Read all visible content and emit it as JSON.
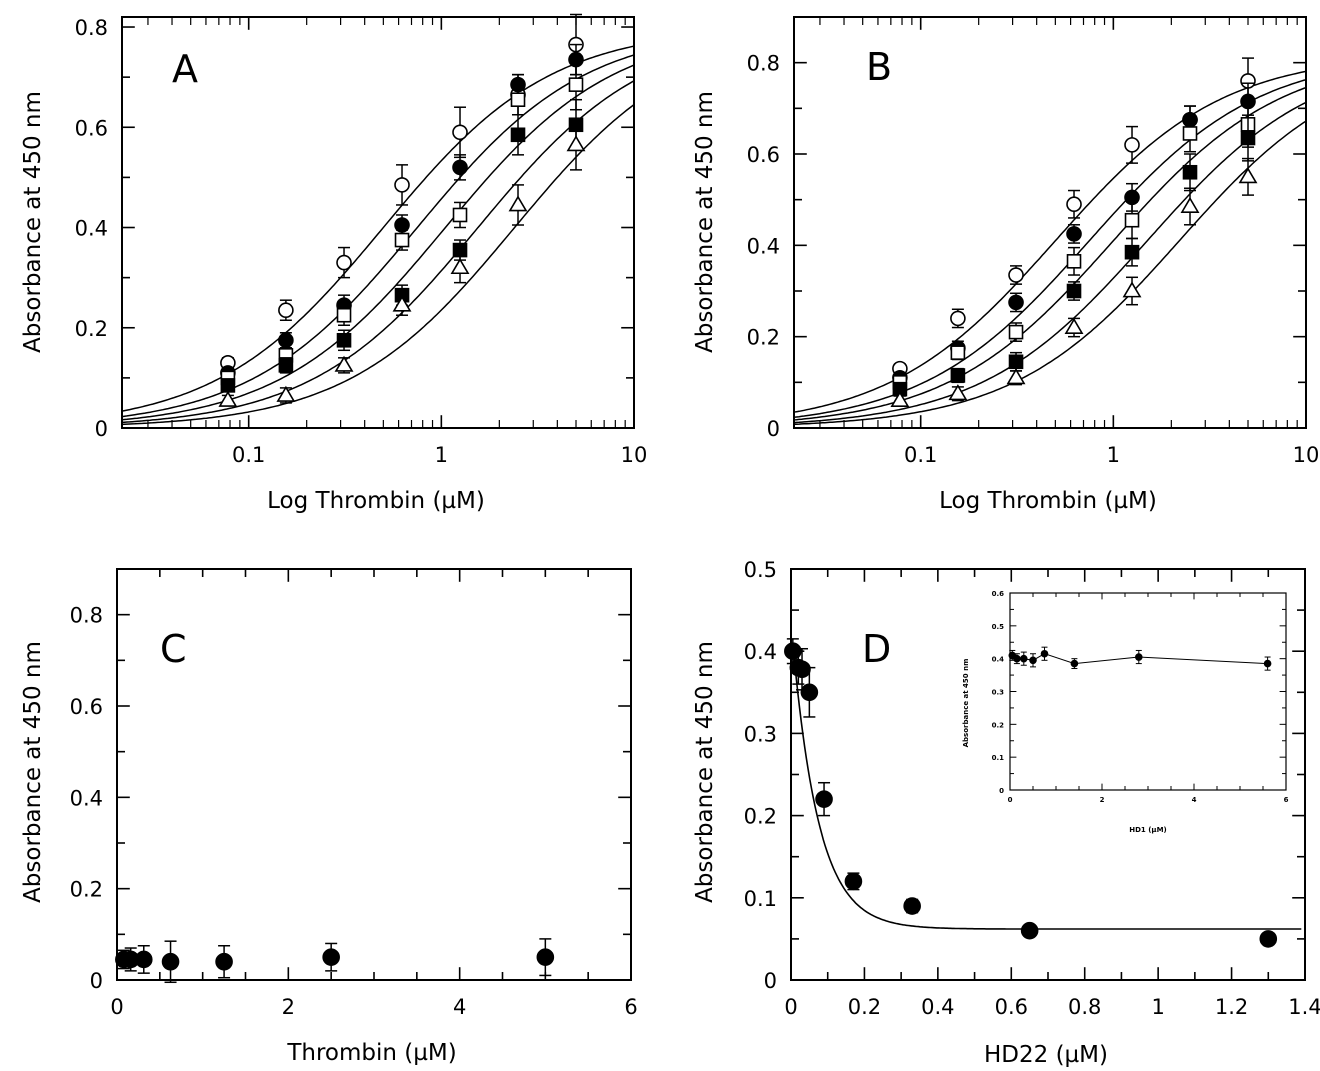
{
  "figure": {
    "panels": [
      {
        "id": "A",
        "letter": "A",
        "xlabel": "Log Thrombin (µM)",
        "ylabel": "Absorbance at 450 nm",
        "xticks": [
          "0.1",
          "1",
          "10"
        ],
        "yticks": [
          "0",
          "0.2",
          "0.4",
          "0.6",
          "0.8"
        ]
      },
      {
        "id": "B",
        "letter": "B",
        "xlabel": "Log Thrombin (µM)",
        "ylabel": "Absorbance at 450 nm",
        "xticks": [
          "0.1",
          "1",
          "10"
        ],
        "yticks": [
          "0",
          "0.2",
          "0.4",
          "0.6",
          "0.8"
        ]
      },
      {
        "id": "C",
        "letter": "C",
        "xlabel": "Thrombin (µM)",
        "ylabel": "Absorbance at 450 nm",
        "xticks": [
          "0",
          "2",
          "4",
          "6"
        ],
        "yticks": [
          "0",
          "0.2",
          "0.4",
          "0.6",
          "0.8"
        ]
      },
      {
        "id": "D",
        "letter": "D",
        "xlabel": "HD22 (µM)",
        "ylabel": "Absorbance at 450 nm",
        "xticks": [
          "0",
          "0.2",
          "0.4",
          "0.6",
          "0.8",
          "1",
          "1.2",
          "1.4"
        ],
        "yticks": [
          "0",
          "0.1",
          "0.2",
          "0.3",
          "0.4",
          "0.5"
        ]
      },
      {
        "id": "D-inset",
        "letter": "",
        "xlabel": "HD1 (µM)",
        "ylabel": "Absorbance at 450 nm",
        "xticks": [
          "0",
          "2",
          "4",
          "6"
        ],
        "yticks": [
          "0",
          "0.1",
          "0.2",
          "0.3",
          "0.4",
          "0.5",
          "0.6"
        ]
      }
    ]
  },
  "chart_data": [
    {
      "panel": "A",
      "type": "scatter",
      "xscale": "log",
      "xlim": [
        0.022,
        10
      ],
      "ylim": [
        0,
        0.82
      ],
      "grid": false,
      "xlabel": "Log Thrombin (µM)",
      "ylabel": "Absorbance at 450 nm",
      "x": [
        0.078,
        0.156,
        0.3125,
        0.625,
        1.25,
        2.5,
        5
      ],
      "fit": {
        "model": "sigmoid",
        "top": 0.8,
        "hill": 1.0
      },
      "series": [
        {
          "marker": "open-circle",
          "values": [
            0.13,
            0.235,
            0.33,
            0.485,
            0.59,
            0.665,
            0.765
          ],
          "errors": [
            0.01,
            0.02,
            0.03,
            0.04,
            0.05,
            0.04,
            0.06
          ],
          "ec50": 0.5
        },
        {
          "marker": "filled-circle",
          "values": [
            0.11,
            0.175,
            0.245,
            0.405,
            0.52,
            0.685,
            0.735
          ],
          "errors": [
            0.01,
            0.015,
            0.02,
            0.02,
            0.025,
            0.02,
            0.03
          ],
          "ec50": 0.75
        },
        {
          "marker": "open-square",
          "values": [
            0.1,
            0.145,
            0.225,
            0.375,
            0.425,
            0.655,
            0.685
          ],
          "errors": [
            0.01,
            0.015,
            0.02,
            0.02,
            0.025,
            0.03,
            0.05
          ],
          "ec50": 1.05
        },
        {
          "marker": "filled-square",
          "values": [
            0.085,
            0.125,
            0.175,
            0.265,
            0.355,
            0.585,
            0.605
          ],
          "errors": [
            0.01,
            0.015,
            0.02,
            0.02,
            0.02,
            0.04,
            0.05
          ],
          "ec50": 1.55
        },
        {
          "marker": "open-triangle",
          "values": [
            0.055,
            0.065,
            0.125,
            0.245,
            0.32,
            0.445,
            0.565
          ],
          "errors": [
            0.01,
            0.015,
            0.015,
            0.02,
            0.03,
            0.04,
            0.05
          ],
          "ec50": 2.4
        }
      ]
    },
    {
      "panel": "B",
      "type": "scatter",
      "xscale": "log",
      "xlim": [
        0.022,
        10
      ],
      "ylim": [
        0,
        0.9
      ],
      "grid": false,
      "xlabel": "Log Thrombin (µM)",
      "ylabel": "Absorbance at 450 nm",
      "x": [
        0.078,
        0.156,
        0.3125,
        0.625,
        1.25,
        2.5,
        5
      ],
      "fit": {
        "model": "sigmoid",
        "top": 0.82,
        "hill": 1.0
      },
      "series": [
        {
          "marker": "open-circle",
          "values": [
            0.13,
            0.24,
            0.335,
            0.49,
            0.62,
            0.675,
            0.76
          ],
          "errors": [
            0.01,
            0.02,
            0.02,
            0.03,
            0.04,
            0.03,
            0.05
          ],
          "ec50": 0.5
        },
        {
          "marker": "filled-circle",
          "values": [
            0.11,
            0.175,
            0.275,
            0.425,
            0.505,
            0.675,
            0.715
          ],
          "errors": [
            0.01,
            0.015,
            0.02,
            0.02,
            0.03,
            0.03,
            0.04
          ],
          "ec50": 0.75
        },
        {
          "marker": "open-square",
          "values": [
            0.1,
            0.165,
            0.21,
            0.365,
            0.455,
            0.645,
            0.665
          ],
          "errors": [
            0.01,
            0.015,
            0.02,
            0.03,
            0.04,
            0.04,
            0.05
          ],
          "ec50": 1.0
        },
        {
          "marker": "filled-square",
          "values": [
            0.085,
            0.115,
            0.145,
            0.3,
            0.385,
            0.56,
            0.635
          ],
          "errors": [
            0.01,
            0.015,
            0.02,
            0.02,
            0.03,
            0.04,
            0.05
          ],
          "ec50": 1.5
        },
        {
          "marker": "open-triangle",
          "values": [
            0.06,
            0.075,
            0.11,
            0.22,
            0.3,
            0.485,
            0.55
          ],
          "errors": [
            0.01,
            0.015,
            0.015,
            0.02,
            0.03,
            0.04,
            0.04
          ],
          "ec50": 2.2
        }
      ]
    },
    {
      "panel": "C",
      "type": "scatter",
      "xlim": [
        0,
        6
      ],
      "ylim": [
        0,
        0.9
      ],
      "grid": false,
      "xlabel": "Thrombin (µM)",
      "ylabel": "Absorbance at 450 nm",
      "series": [
        {
          "marker": "filled-circle",
          "x": [
            0.08,
            0.16,
            0.3125,
            0.625,
            1.25,
            2.5,
            5
          ],
          "values": [
            0.045,
            0.045,
            0.045,
            0.04,
            0.04,
            0.05,
            0.05
          ],
          "errors": [
            0.02,
            0.025,
            0.03,
            0.045,
            0.035,
            0.03,
            0.04
          ]
        }
      ]
    },
    {
      "panel": "D",
      "type": "scatter",
      "xlim": [
        0,
        1.4
      ],
      "ylim": [
        0,
        0.5
      ],
      "grid": false,
      "xlabel": "HD22 (µM)",
      "ylabel": "Absorbance at 450 nm",
      "fit": {
        "model": "exponential-decay",
        "plateau": 0.062,
        "start": 0.41,
        "k": 14
      },
      "series": [
        {
          "marker": "filled-circle",
          "x": [
            0.005,
            0.02,
            0.03,
            0.05,
            0.09,
            0.17,
            0.33,
            0.65,
            1.3
          ],
          "values": [
            0.4,
            0.38,
            0.378,
            0.35,
            0.22,
            0.12,
            0.09,
            0.06,
            0.05
          ],
          "errors": [
            0.015,
            0.02,
            0.025,
            0.03,
            0.02,
            0.01,
            0.008,
            0.006,
            0.006
          ]
        }
      ]
    },
    {
      "panel": "D-inset",
      "type": "line",
      "xlim": [
        0,
        6
      ],
      "ylim": [
        0,
        0.6
      ],
      "grid": false,
      "xlabel": "HD1 (µM)",
      "ylabel": "Absorbance at 450 nm",
      "series": [
        {
          "marker": "filled-circle",
          "x": [
            0.05,
            0.15,
            0.3,
            0.5,
            0.75,
            1.4,
            2.8,
            5.6
          ],
          "values": [
            0.41,
            0.4,
            0.4,
            0.395,
            0.415,
            0.385,
            0.405,
            0.385
          ],
          "errors": [
            0.015,
            0.015,
            0.02,
            0.02,
            0.02,
            0.015,
            0.02,
            0.02
          ]
        }
      ]
    }
  ]
}
